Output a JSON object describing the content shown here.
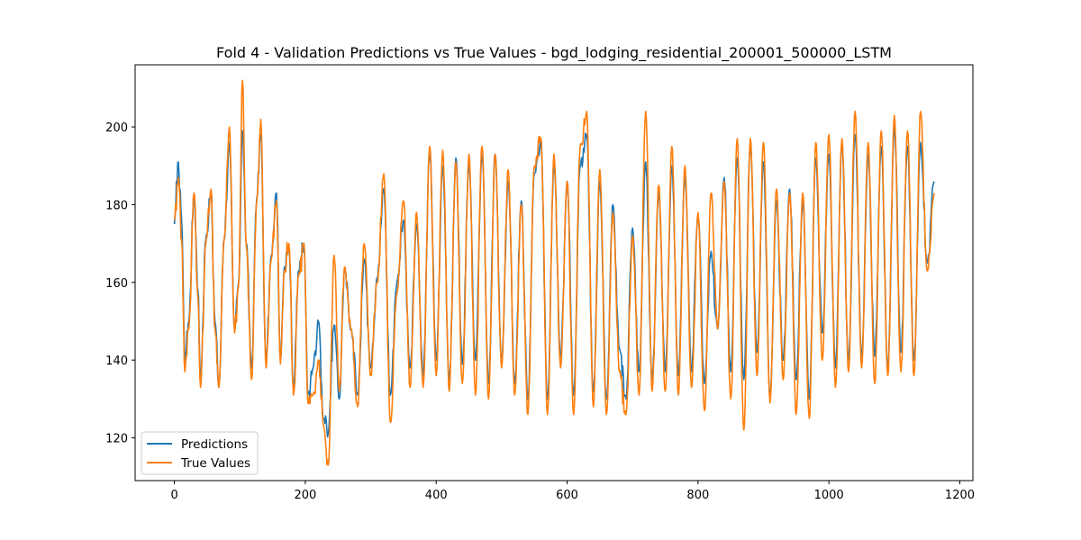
{
  "chart_data": {
    "type": "line",
    "title": "Fold 4 - Validation Predictions vs True Values - bgd_lodging_residential_200001_500000_LSTM",
    "xlabel": "",
    "ylabel": "",
    "xlim": [
      -60,
      1220
    ],
    "ylim": [
      109,
      216
    ],
    "xticks": [
      0,
      200,
      400,
      600,
      800,
      1000,
      1200
    ],
    "yticks": [
      120,
      140,
      160,
      180,
      200
    ],
    "grid": false,
    "legend_position": "lower-left",
    "n_points": 1162,
    "series": [
      {
        "name": "Predictions",
        "color": "#1f77b4",
        "keypoints": [
          [
            0,
            175
          ],
          [
            6,
            191
          ],
          [
            11,
            176
          ],
          [
            16,
            140
          ],
          [
            22,
            150
          ],
          [
            30,
            183
          ],
          [
            36,
            158
          ],
          [
            40,
            135
          ],
          [
            48,
            171
          ],
          [
            56,
            183
          ],
          [
            62,
            150
          ],
          [
            68,
            133
          ],
          [
            76,
            171
          ],
          [
            84,
            196
          ],
          [
            92,
            148
          ],
          [
            98,
            160
          ],
          [
            104,
            199
          ],
          [
            110,
            170
          ],
          [
            118,
            138
          ],
          [
            126,
            182
          ],
          [
            132,
            198
          ],
          [
            140,
            140
          ],
          [
            148,
            167
          ],
          [
            156,
            183
          ],
          [
            162,
            140
          ],
          [
            168,
            164
          ],
          [
            175,
            169
          ],
          [
            182,
            133
          ],
          [
            190,
            163
          ],
          [
            198,
            170
          ],
          [
            204,
            131
          ],
          [
            212,
            138
          ],
          [
            220,
            150
          ],
          [
            228,
            125
          ],
          [
            235,
            121
          ],
          [
            244,
            149
          ],
          [
            252,
            130
          ],
          [
            260,
            163
          ],
          [
            270,
            148
          ],
          [
            280,
            131
          ],
          [
            290,
            166
          ],
          [
            300,
            138
          ],
          [
            310,
            161
          ],
          [
            320,
            184
          ],
          [
            330,
            131
          ],
          [
            340,
            160
          ],
          [
            350,
            176
          ],
          [
            360,
            138
          ],
          [
            370,
            175
          ],
          [
            380,
            136
          ],
          [
            390,
            194
          ],
          [
            400,
            140
          ],
          [
            410,
            190
          ],
          [
            420,
            135
          ],
          [
            430,
            192
          ],
          [
            440,
            139
          ],
          [
            450,
            190
          ],
          [
            460,
            140
          ],
          [
            470,
            193
          ],
          [
            480,
            134
          ],
          [
            490,
            193
          ],
          [
            500,
            140
          ],
          [
            510,
            186
          ],
          [
            520,
            134
          ],
          [
            530,
            181
          ],
          [
            540,
            130
          ],
          [
            550,
            188
          ],
          [
            560,
            196
          ],
          [
            570,
            130
          ],
          [
            580,
            190
          ],
          [
            590,
            141
          ],
          [
            600,
            186
          ],
          [
            610,
            131
          ],
          [
            620,
            190
          ],
          [
            630,
            198
          ],
          [
            640,
            132
          ],
          [
            650,
            186
          ],
          [
            660,
            130
          ],
          [
            670,
            180
          ],
          [
            680,
            143
          ],
          [
            690,
            130
          ],
          [
            700,
            174
          ],
          [
            710,
            137
          ],
          [
            720,
            191
          ],
          [
            730,
            135
          ],
          [
            740,
            183
          ],
          [
            750,
            137
          ],
          [
            760,
            190
          ],
          [
            770,
            136
          ],
          [
            780,
            187
          ],
          [
            790,
            137
          ],
          [
            800,
            177
          ],
          [
            810,
            134
          ],
          [
            820,
            168
          ],
          [
            830,
            148
          ],
          [
            840,
            187
          ],
          [
            850,
            137
          ],
          [
            860,
            192
          ],
          [
            870,
            135
          ],
          [
            880,
            196
          ],
          [
            890,
            142
          ],
          [
            900,
            191
          ],
          [
            910,
            131
          ],
          [
            920,
            181
          ],
          [
            930,
            140
          ],
          [
            940,
            184
          ],
          [
            950,
            135
          ],
          [
            960,
            181
          ],
          [
            970,
            130
          ],
          [
            980,
            192
          ],
          [
            990,
            147
          ],
          [
            1000,
            193
          ],
          [
            1010,
            138
          ],
          [
            1020,
            196
          ],
          [
            1030,
            140
          ],
          [
            1040,
            198
          ],
          [
            1050,
            141
          ],
          [
            1060,
            193
          ],
          [
            1070,
            141
          ],
          [
            1080,
            195
          ],
          [
            1090,
            138
          ],
          [
            1100,
            200
          ],
          [
            1110,
            142
          ],
          [
            1120,
            195
          ],
          [
            1130,
            140
          ],
          [
            1140,
            196
          ],
          [
            1150,
            165
          ],
          [
            1161,
            186
          ]
        ]
      },
      {
        "name": "True Values",
        "color": "#ff7f0e",
        "keypoints": [
          [
            0,
            176
          ],
          [
            6,
            187
          ],
          [
            11,
            171
          ],
          [
            16,
            137
          ],
          [
            22,
            148
          ],
          [
            30,
            183
          ],
          [
            36,
            156
          ],
          [
            40,
            133
          ],
          [
            48,
            170
          ],
          [
            56,
            184
          ],
          [
            62,
            148
          ],
          [
            68,
            133
          ],
          [
            76,
            171
          ],
          [
            84,
            200
          ],
          [
            92,
            147
          ],
          [
            98,
            159
          ],
          [
            104,
            212
          ],
          [
            110,
            169
          ],
          [
            118,
            135
          ],
          [
            126,
            181
          ],
          [
            132,
            202
          ],
          [
            140,
            138
          ],
          [
            148,
            166
          ],
          [
            156,
            181
          ],
          [
            162,
            139
          ],
          [
            168,
            163
          ],
          [
            175,
            170
          ],
          [
            182,
            131
          ],
          [
            190,
            162
          ],
          [
            198,
            170
          ],
          [
            204,
            129
          ],
          [
            212,
            131
          ],
          [
            220,
            140
          ],
          [
            228,
            123
          ],
          [
            235,
            113
          ],
          [
            244,
            167
          ],
          [
            252,
            132
          ],
          [
            260,
            164
          ],
          [
            270,
            148
          ],
          [
            280,
            128
          ],
          [
            290,
            170
          ],
          [
            300,
            136
          ],
          [
            310,
            160
          ],
          [
            320,
            188
          ],
          [
            330,
            124
          ],
          [
            340,
            157
          ],
          [
            350,
            181
          ],
          [
            360,
            133
          ],
          [
            370,
            178
          ],
          [
            380,
            133
          ],
          [
            390,
            195
          ],
          [
            400,
            136
          ],
          [
            410,
            194
          ],
          [
            420,
            132
          ],
          [
            430,
            191
          ],
          [
            440,
            134
          ],
          [
            450,
            193
          ],
          [
            460,
            131
          ],
          [
            470,
            195
          ],
          [
            480,
            130
          ],
          [
            490,
            193
          ],
          [
            500,
            138
          ],
          [
            510,
            189
          ],
          [
            520,
            131
          ],
          [
            530,
            180
          ],
          [
            540,
            126
          ],
          [
            550,
            190
          ],
          [
            560,
            197
          ],
          [
            570,
            126
          ],
          [
            580,
            193
          ],
          [
            590,
            138
          ],
          [
            600,
            186
          ],
          [
            610,
            126
          ],
          [
            620,
            195
          ],
          [
            630,
            204
          ],
          [
            640,
            128
          ],
          [
            650,
            189
          ],
          [
            660,
            126
          ],
          [
            670,
            178
          ],
          [
            680,
            137
          ],
          [
            690,
            126
          ],
          [
            700,
            172
          ],
          [
            710,
            131
          ],
          [
            720,
            204
          ],
          [
            730,
            132
          ],
          [
            740,
            185
          ],
          [
            750,
            132
          ],
          [
            760,
            195
          ],
          [
            770,
            131
          ],
          [
            780,
            190
          ],
          [
            790,
            133
          ],
          [
            800,
            178
          ],
          [
            810,
            127
          ],
          [
            820,
            183
          ],
          [
            830,
            148
          ],
          [
            840,
            186
          ],
          [
            850,
            130
          ],
          [
            860,
            197
          ],
          [
            870,
            122
          ],
          [
            880,
            197
          ],
          [
            890,
            136
          ],
          [
            900,
            196
          ],
          [
            910,
            129
          ],
          [
            920,
            184
          ],
          [
            930,
            135
          ],
          [
            940,
            183
          ],
          [
            950,
            126
          ],
          [
            960,
            183
          ],
          [
            970,
            125
          ],
          [
            980,
            196
          ],
          [
            990,
            140
          ],
          [
            1000,
            198
          ],
          [
            1010,
            133
          ],
          [
            1020,
            197
          ],
          [
            1030,
            137
          ],
          [
            1040,
            204
          ],
          [
            1050,
            138
          ],
          [
            1060,
            196
          ],
          [
            1070,
            134
          ],
          [
            1080,
            199
          ],
          [
            1090,
            136
          ],
          [
            1100,
            203
          ],
          [
            1110,
            137
          ],
          [
            1120,
            199
          ],
          [
            1130,
            136
          ],
          [
            1140,
            204
          ],
          [
            1150,
            163
          ],
          [
            1161,
            183
          ]
        ]
      }
    ]
  }
}
